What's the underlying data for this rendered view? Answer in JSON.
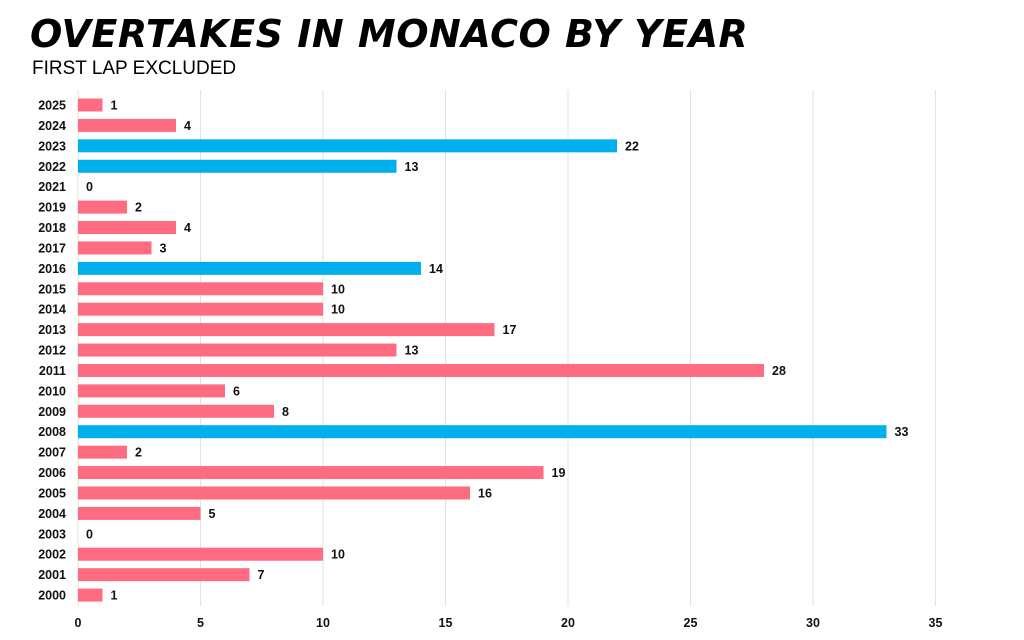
{
  "chart_data": {
    "type": "bar",
    "orientation": "horizontal",
    "title": "OVERTAKES IN MONACO BY YEAR",
    "subtitle": "FIRST LAP EXCLUDED",
    "xlabel": "",
    "ylabel": "",
    "xlim": [
      0,
      35
    ],
    "xticks": [
      0,
      5,
      10,
      15,
      20,
      25,
      30,
      35
    ],
    "grid": true,
    "categories": [
      "2025",
      "2024",
      "2023",
      "2022",
      "2021",
      "2019",
      "2018",
      "2017",
      "2016",
      "2015",
      "2014",
      "2013",
      "2012",
      "2011",
      "2010",
      "2009",
      "2008",
      "2007",
      "2006",
      "2005",
      "2004",
      "2003",
      "2002",
      "2001",
      "2000"
    ],
    "values": [
      1,
      4,
      22,
      13,
      0,
      2,
      4,
      3,
      14,
      10,
      10,
      17,
      13,
      28,
      6,
      8,
      33,
      2,
      19,
      16,
      5,
      0,
      10,
      7,
      1
    ],
    "highlighted": [
      "2023",
      "2022",
      "2016",
      "2008"
    ],
    "colors": {
      "default": "#ff6b81",
      "highlight": "#00b0ed"
    }
  }
}
